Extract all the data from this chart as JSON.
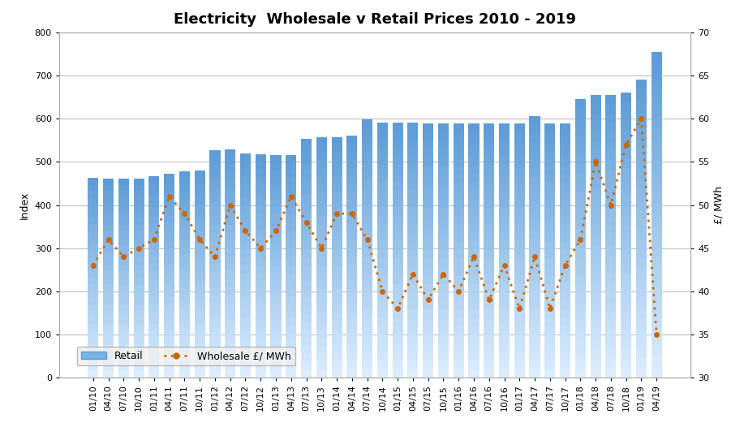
{
  "title": "Electricity  Wholesale v Retail Prices 2010 - 2019",
  "left_ylabel": "Index",
  "right_ylabel": "£/ MWh",
  "categories": [
    "01/10",
    "04/10",
    "07/10",
    "10/10",
    "01/11",
    "04/11",
    "07/11",
    "10/11",
    "01/12",
    "04/12",
    "07/12",
    "10/12",
    "01/13",
    "04/13",
    "07/13",
    "10/13",
    "01/14",
    "04/14",
    "07/14",
    "10/14",
    "01/15",
    "04/15",
    "07/15",
    "10/15",
    "01/16",
    "04/16",
    "07/16",
    "10/16",
    "01/17",
    "04/17",
    "07/17",
    "10/17",
    "01/18",
    "04/18",
    "07/18",
    "10/18",
    "01/19",
    "04/19"
  ],
  "retail": [
    463,
    462,
    461,
    461,
    467,
    472,
    478,
    481,
    528,
    530,
    520,
    517,
    515,
    515,
    553,
    557,
    558,
    561,
    598,
    592,
    592,
    592,
    590,
    590,
    590,
    590,
    590,
    590,
    590,
    607,
    590,
    590,
    645,
    656,
    656,
    661,
    691,
    755
  ],
  "wholesale": [
    43,
    46,
    44,
    45,
    46,
    51,
    49,
    46,
    44,
    50,
    47,
    45,
    47,
    51,
    48,
    45,
    49,
    49,
    46,
    40,
    38,
    42,
    39,
    42,
    40,
    44,
    39,
    43,
    38,
    44,
    38,
    43,
    46,
    55,
    50,
    57,
    60,
    35
  ],
  "bar_color_top": "#5b9bd5",
  "bar_color_bottom": "#ddeeff",
  "line_color": "#cc6600",
  "left_ylim": [
    0,
    800
  ],
  "right_ylim": [
    30,
    70
  ],
  "left_yticks": [
    0,
    100,
    200,
    300,
    400,
    500,
    600,
    700,
    800
  ],
  "right_yticks": [
    30,
    35,
    40,
    45,
    50,
    55,
    60,
    65,
    70
  ],
  "bg_color": "#ffffff",
  "grid_color": "#c0c0c0"
}
